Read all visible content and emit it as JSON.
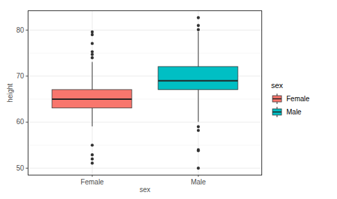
{
  "chart_data": {
    "type": "boxplot",
    "x_label": "sex",
    "y_label": "height",
    "categories": [
      "Female",
      "Male"
    ],
    "colors": [
      "#F8766D",
      "#00BFC4"
    ],
    "boxes": [
      {
        "q1": 63,
        "median": 65,
        "q3": 67,
        "whisker_low": 59,
        "whisker_high": 73,
        "outliers": [
          79.6,
          79,
          77.1,
          75.3,
          74.7,
          74,
          55,
          52.9,
          52,
          51.1
        ]
      },
      {
        "q1": 67,
        "median": 69,
        "q3": 72,
        "whisker_low": 60,
        "whisker_high": 79.6,
        "outliers": [
          82.7,
          81,
          80.1,
          59,
          58.2,
          54,
          53.8,
          50
        ]
      }
    ],
    "ylim": [
      48.5,
      84.2
    ],
    "yticks": [
      50,
      60,
      70,
      80
    ],
    "grid": true,
    "legend": "right",
    "legend_title": "sex"
  }
}
